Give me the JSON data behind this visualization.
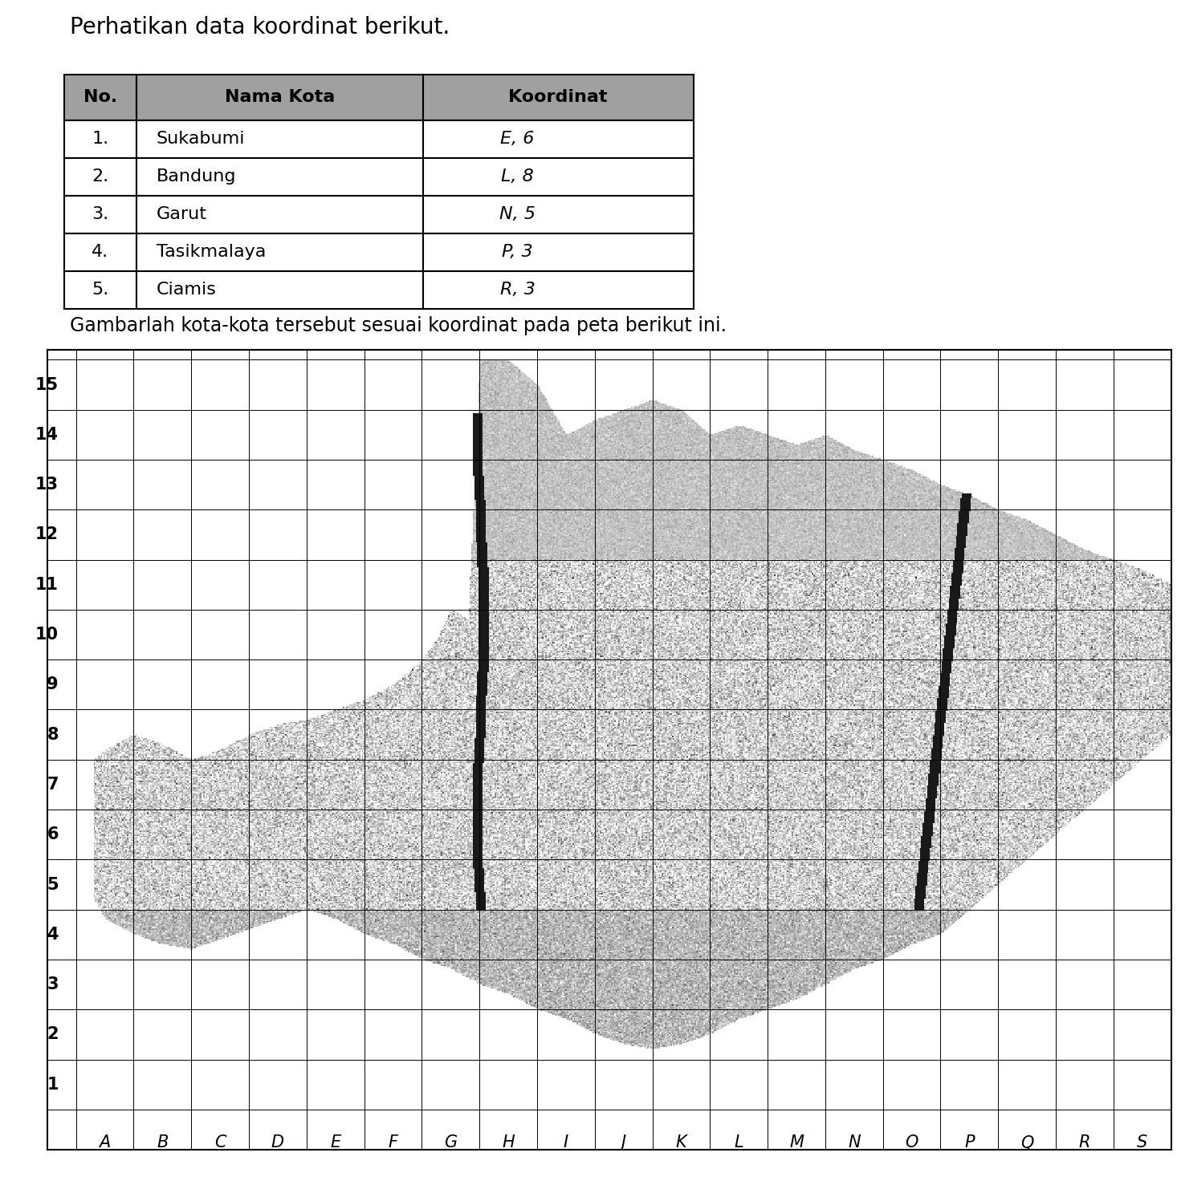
{
  "title_text": "Perhatikan data koordinat berikut.",
  "subtitle_text": "Gambarlah kota-kota tersebut sesuai koordinat pada peta berikut ini.",
  "table_headers": [
    "No.",
    "Nama Kota",
    "Koordinat"
  ],
  "table_rows": [
    [
      "1.",
      "Sukabumi",
      "E, 6"
    ],
    [
      "2.",
      "Bandung",
      "L, 8"
    ],
    [
      "3.",
      "Garut",
      "N, 5"
    ],
    [
      "4.",
      "Tasikmalaya",
      "P, 3"
    ],
    [
      "5.",
      "Ciamis",
      "R, 3"
    ]
  ],
  "x_labels": [
    "A",
    "B",
    "C",
    "D",
    "E",
    "F",
    "G",
    "H",
    "I",
    "J",
    "K",
    "L",
    "M",
    "N",
    "O",
    "P",
    "Q",
    "R",
    "S"
  ],
  "y_labels": [
    "1",
    "2",
    "3",
    "4",
    "5",
    "6",
    "7",
    "8",
    "9",
    "10",
    "11",
    "12",
    "13",
    "14",
    "15"
  ],
  "grid_cols": 19,
  "grid_rows": 15,
  "bg_color": "#ffffff",
  "table_header_bg": "#a0a0a0",
  "font_size_title": 20,
  "font_size_table": 16,
  "font_size_subtitle": 17,
  "font_size_axis": 15
}
